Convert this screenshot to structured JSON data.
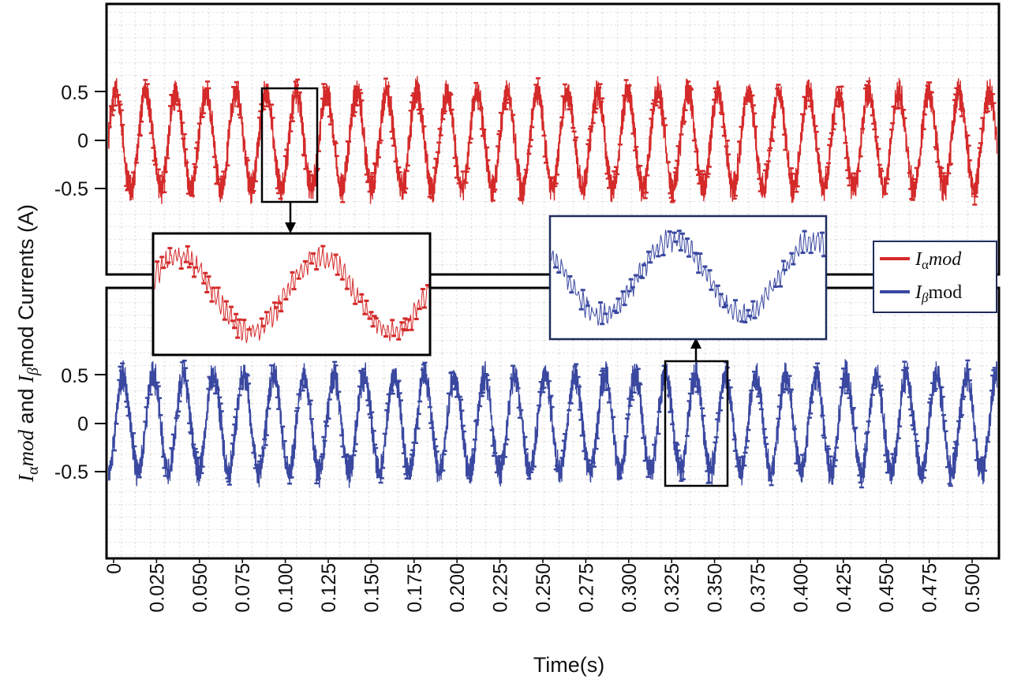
{
  "chart_data": {
    "type": "line",
    "xlabel": "Time(s)",
    "ylabel": {
      "part1_symbol": "I",
      "part1_sub": "α",
      "part1_italic": "mod",
      "and": " and ",
      "part2_symbol": "I",
      "part2_sub": "β",
      "part2_text": "mod Currents (A)"
    },
    "x_ticks": [
      "0",
      "0.025",
      "0.050",
      "0.075",
      "0.100",
      "0.125",
      "0.150",
      "0.175",
      "0.200",
      "0.225",
      "0.250",
      "0.275",
      "0.300",
      "0.325",
      "0.350",
      "0.375",
      "0.400",
      "0.425",
      "0.450",
      "0.475",
      "0.500"
    ],
    "y_ticks": [
      "0.5",
      "0",
      "-0.5"
    ],
    "xlim": [
      0,
      0.525
    ],
    "ylim": [
      -1.3,
      1.4
    ],
    "grid": true,
    "fundamental_hz": 57,
    "amplitude": 0.5,
    "ripple_amplitude": 0.1,
    "legend_position": "right-middle",
    "series": [
      {
        "name": "Iαmod",
        "legend_symbol": "I",
        "legend_sub": "α",
        "legend_suffix": "mod",
        "color": "#d42a2a",
        "panel": "top",
        "phase_deg": 0,
        "zoom_window": [
          0.089,
          0.123
        ]
      },
      {
        "name": "Iβmod",
        "legend_symbol": "I",
        "legend_sub": "β",
        "legend_suffix": "mod",
        "color": "#3a48a0",
        "panel": "bottom",
        "phase_deg": -90,
        "zoom_window": [
          0.327,
          0.361
        ]
      }
    ]
  }
}
